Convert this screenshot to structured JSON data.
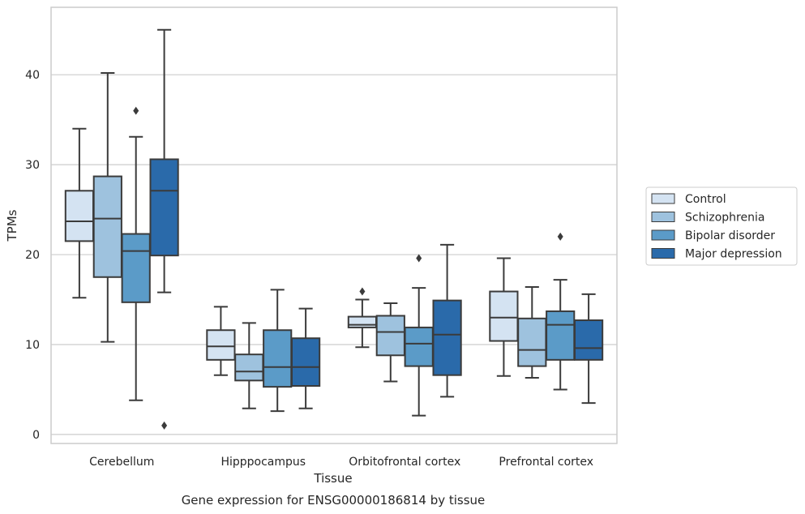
{
  "caption": "Gene expression for ENSG00000186814 by tissue",
  "chart_data": {
    "type": "box",
    "xlabel": "Tissue",
    "ylabel": "TPMs",
    "ylim": [
      -1,
      47.5
    ],
    "yticks": [
      0,
      10,
      20,
      30,
      40
    ],
    "grid": "horizontal",
    "legend_position": "right",
    "categories": [
      "Cerebellum",
      "Hipppocampus",
      "Orbitofrontal cortex",
      "Prefrontal cortex"
    ],
    "series": [
      {
        "name": "Control",
        "color": "#d4e3f2",
        "boxes": [
          {
            "whislo": 15.2,
            "q1": 21.5,
            "med": 23.7,
            "q3": 27.1,
            "whishi": 34.0,
            "fliers": []
          },
          {
            "whislo": 6.6,
            "q1": 8.3,
            "med": 9.8,
            "q3": 11.6,
            "whishi": 14.2,
            "fliers": []
          },
          {
            "whislo": 9.7,
            "q1": 11.9,
            "med": 12.2,
            "q3": 13.1,
            "whishi": 15.0,
            "fliers": [
              15.9
            ]
          },
          {
            "whislo": 6.5,
            "q1": 10.4,
            "med": 13.0,
            "q3": 15.9,
            "whishi": 19.6,
            "fliers": []
          }
        ]
      },
      {
        "name": "Schizophrenia",
        "color": "#9ec2de",
        "boxes": [
          {
            "whislo": 10.3,
            "q1": 17.5,
            "med": 24.0,
            "q3": 28.7,
            "whishi": 40.2,
            "fliers": []
          },
          {
            "whislo": 2.9,
            "q1": 6.0,
            "med": 7.0,
            "q3": 8.9,
            "whishi": 12.4,
            "fliers": []
          },
          {
            "whislo": 5.9,
            "q1": 8.8,
            "med": 11.4,
            "q3": 13.2,
            "whishi": 14.6,
            "fliers": []
          },
          {
            "whislo": 6.3,
            "q1": 7.6,
            "med": 9.4,
            "q3": 12.9,
            "whishi": 16.4,
            "fliers": []
          }
        ]
      },
      {
        "name": "Bipolar disorder",
        "color": "#5b9bc8",
        "boxes": [
          {
            "whislo": 3.8,
            "q1": 14.7,
            "med": 20.4,
            "q3": 22.3,
            "whishi": 33.1,
            "fliers": [
              36.0
            ]
          },
          {
            "whislo": 2.6,
            "q1": 5.3,
            "med": 7.5,
            "q3": 11.6,
            "whishi": 16.1,
            "fliers": []
          },
          {
            "whislo": 2.1,
            "q1": 7.6,
            "med": 10.1,
            "q3": 11.9,
            "whishi": 16.3,
            "fliers": [
              19.6
            ]
          },
          {
            "whislo": 5.0,
            "q1": 8.3,
            "med": 12.2,
            "q3": 13.7,
            "whishi": 17.2,
            "fliers": [
              22.0
            ]
          }
        ]
      },
      {
        "name": "Major depression",
        "color": "#2a6aaa",
        "boxes": [
          {
            "whislo": 15.8,
            "q1": 19.9,
            "med": 27.1,
            "q3": 30.6,
            "whishi": 45.0,
            "fliers": [
              1.0
            ]
          },
          {
            "whislo": 2.9,
            "q1": 5.4,
            "med": 7.5,
            "q3": 10.7,
            "whishi": 14.0,
            "fliers": []
          },
          {
            "whislo": 4.2,
            "q1": 6.6,
            "med": 11.1,
            "q3": 14.9,
            "whishi": 21.1,
            "fliers": []
          },
          {
            "whislo": 3.5,
            "q1": 8.3,
            "med": 9.6,
            "q3": 12.7,
            "whishi": 15.6,
            "fliers": []
          }
        ]
      }
    ]
  }
}
